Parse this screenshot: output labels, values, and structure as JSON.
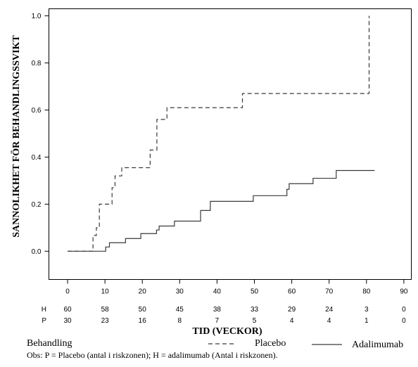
{
  "chart_data": {
    "type": "line",
    "step": "post",
    "title": "",
    "xlabel": "TID (VECKOR)",
    "ylabel": "SANNOLIKHET FÖR BEHANDLINGSSVIKT",
    "xlim": [
      -5,
      92
    ],
    "ylim": [
      -0.12,
      1.03
    ],
    "grid": false,
    "xticks": [
      "0",
      "10",
      "20",
      "30",
      "40",
      "50",
      "60",
      "70",
      "80",
      "90"
    ],
    "yticks": [
      "0.0",
      "0.2",
      "0.4",
      "0.6",
      "0.8",
      "1.0"
    ],
    "series": [
      {
        "name": "Placebo",
        "style": "dashed",
        "color": "#3a3a3a",
        "x": [
          0,
          6.8,
          7.7,
          8.5,
          11.9,
          12.7,
          14.5,
          22.1,
          23.9,
          26.6,
          46.8,
          80.7
        ],
        "y": [
          0,
          0.067,
          0.1,
          0.2,
          0.27,
          0.32,
          0.355,
          0.43,
          0.56,
          0.61,
          0.67,
          1.0
        ]
      },
      {
        "name": "Adalimumab",
        "style": "solid",
        "color": "#3a3a3a",
        "x": [
          0,
          10.2,
          11.2,
          15.5,
          19.6,
          23.8,
          24.5,
          28.6,
          35.6,
          38.2,
          49.7,
          58.7,
          59.3,
          65.7,
          71.9,
          82.2
        ],
        "y": [
          0,
          0.018,
          0.036,
          0.054,
          0.075,
          0.09,
          0.107,
          0.128,
          0.173,
          0.212,
          0.236,
          0.263,
          0.287,
          0.31,
          0.343,
          0.343
        ]
      }
    ],
    "at_risk": [
      {
        "label": "H",
        "counts": [
          "60",
          "58",
          "50",
          "45",
          "38",
          "33",
          "29",
          "24",
          "3",
          "0"
        ]
      },
      {
        "label": "P",
        "counts": [
          "30",
          "23",
          "16",
          "8",
          "7",
          "5",
          "4",
          "4",
          "1",
          "0"
        ]
      }
    ],
    "legend": {
      "title": "Behandling",
      "position": "bottom"
    }
  },
  "footnote": "Obs: P = Placebo (antal i riskzonen); H = adalimumab (Antal i riskzonen)."
}
